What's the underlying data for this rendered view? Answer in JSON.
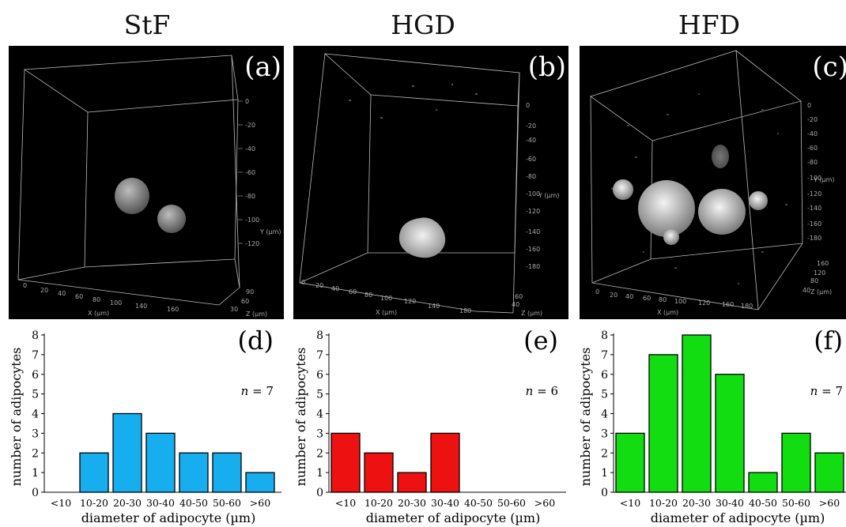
{
  "columns": [
    {
      "title": "StF",
      "image_label": "(a)"
    },
    {
      "title": "HGD",
      "image_label": "(b)"
    },
    {
      "title": "HFD",
      "image_label": "(c)"
    }
  ],
  "micro_axes": {
    "x_label": "X (µm)",
    "y_label": "Y (µm)",
    "z_label": "Z (µm)"
  },
  "colors": {
    "stf": "#17aef0",
    "hgd": "#ee1111",
    "hfd": "#11dd11"
  },
  "chart_data": [
    {
      "type": "bar",
      "panel_label": "(d)",
      "categories": [
        "<10",
        "10-20",
        "20-30",
        "30-40",
        "40-50",
        "50-60",
        ">60"
      ],
      "values": [
        0,
        2,
        4,
        3,
        2,
        2,
        1
      ],
      "annotation": "n = 7",
      "xlabel": "diameter of adipocyte (µm)",
      "ylabel": "number of adipocytes",
      "ylim": [
        0,
        8
      ],
      "yticks": [
        "0",
        "1",
        "2",
        "3",
        "4",
        "5",
        "6",
        "7",
        "8"
      ],
      "color": "#17aef0"
    },
    {
      "type": "bar",
      "panel_label": "(e)",
      "categories": [
        "<10",
        "10-20",
        "20-30",
        "30-40",
        "40-50",
        "50-60",
        ">60"
      ],
      "values": [
        3,
        2,
        1,
        3,
        0,
        0,
        0
      ],
      "annotation": "n = 6",
      "xlabel": "diameter of adipocyte (µm)",
      "ylabel": "number of adipocytes",
      "ylim": [
        0,
        8
      ],
      "yticks": [
        "0",
        "1",
        "2",
        "3",
        "4",
        "5",
        "6",
        "7",
        "8"
      ],
      "color": "#ee1111"
    },
    {
      "type": "bar",
      "panel_label": "(f)",
      "categories": [
        "<10",
        "10-20",
        "20-30",
        "30-40",
        "40-50",
        "50-60",
        ">60"
      ],
      "values": [
        3,
        7,
        8,
        6,
        1,
        3,
        2
      ],
      "annotation": "n = 7",
      "xlabel": "diameter of adipocyte (µm)",
      "ylabel": "number of adipocytes",
      "ylim": [
        0,
        8
      ],
      "yticks": [
        "0",
        "1",
        "2",
        "3",
        "4",
        "5",
        "6",
        "7",
        "8"
      ],
      "color": "#11dd11"
    }
  ]
}
